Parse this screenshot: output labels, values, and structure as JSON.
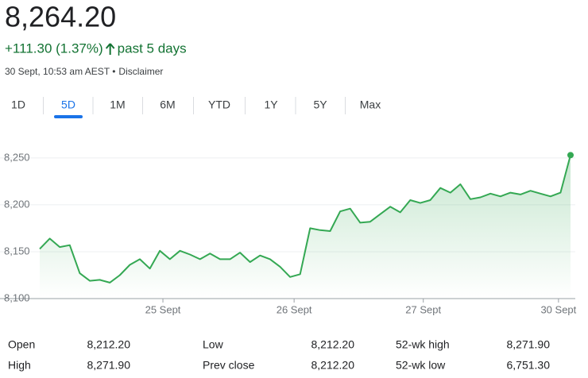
{
  "header": {
    "price": "8,264.20",
    "change": "+111.30 (1.37%)",
    "period": "past 5 days",
    "timestamp": "30 Sept, 10:53 am AEST •",
    "disclaimer": "Disclaimer"
  },
  "tabs": {
    "items": [
      "1D",
      "5D",
      "1M",
      "6M",
      "YTD",
      "1Y",
      "5Y",
      "Max"
    ],
    "selected": 1
  },
  "chart_data": {
    "type": "line",
    "color": "#34a853",
    "x": [
      0,
      1,
      2,
      3,
      4,
      5,
      6,
      7,
      8,
      9,
      10,
      11,
      12,
      13,
      14,
      15,
      16,
      17,
      18,
      19,
      20,
      21,
      22,
      23,
      24,
      25,
      26,
      27,
      28,
      29,
      30,
      31,
      32,
      33,
      34,
      35,
      36,
      37,
      38,
      39,
      40,
      41,
      42,
      43,
      44,
      45,
      46,
      47,
      48,
      49,
      50,
      51,
      52,
      53
    ],
    "values": [
      8153,
      8164,
      8155,
      8157,
      8127,
      8119,
      8120,
      8117,
      8125,
      8136,
      8142,
      8132,
      8151,
      8142,
      8151,
      8147,
      8142,
      8148,
      8142,
      8142,
      8149,
      8139,
      8146,
      8142,
      8134,
      8123,
      8126,
      8175,
      8173,
      8172,
      8193,
      8196,
      8181,
      8182,
      8190,
      8198,
      8192,
      8205,
      8202,
      8205,
      8218,
      8213,
      8222,
      8206,
      8208,
      8212,
      8209,
      8213,
      8211,
      8215,
      8212,
      8209,
      8213,
      8253
    ],
    "xlim": [
      0,
      53
    ],
    "xticks": [
      {
        "value": 12.3,
        "label": "25 Sept"
      },
      {
        "value": 25.4,
        "label": "26 Sept"
      },
      {
        "value": 38.3,
        "label": "27 Sept"
      },
      {
        "value": 51.8,
        "label": "30 Sept"
      }
    ],
    "ylim": [
      8100,
      8266
    ],
    "yticks": [
      {
        "value": 8100,
        "label": "8,100"
      },
      {
        "value": 8150,
        "label": "8,150"
      },
      {
        "value": 8200,
        "label": "8,200"
      },
      {
        "value": 8250,
        "label": "8,250"
      }
    ],
    "grid": true
  },
  "stats": {
    "rows": [
      [
        [
          "Open",
          "8,212.20"
        ],
        [
          "Low",
          "8,212.20"
        ],
        [
          "52-wk high",
          "8,271.90"
        ]
      ],
      [
        [
          "High",
          "8,271.90"
        ],
        [
          "Prev close",
          "8,212.20"
        ],
        [
          "52-wk low",
          "6,751.30"
        ]
      ]
    ]
  }
}
